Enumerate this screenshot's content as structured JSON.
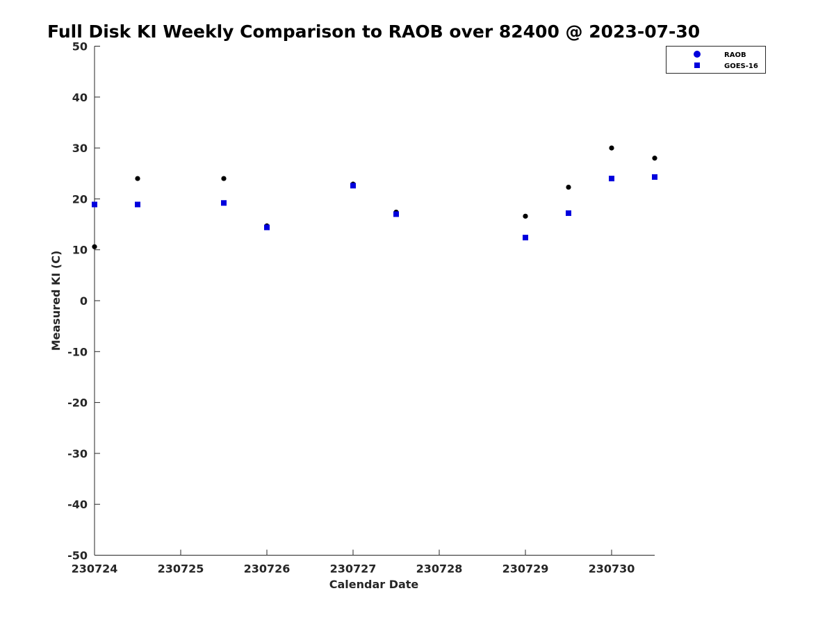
{
  "chart_data": {
    "type": "scatter",
    "title": "Full Disk KI Weekly Comparison to RAOB over 82400 @ 2023-07-30",
    "xlabel": "Calendar Date",
    "ylabel": "Measured KI (C)",
    "ylim": [
      -50,
      50
    ],
    "xlim": [
      "2023-07-24 00:00",
      "2023-07-30 12:00"
    ],
    "x_ticks": [
      "2023-07-24",
      "2023-07-25",
      "2023-07-26",
      "2023-07-27",
      "2023-07-28",
      "2023-07-29",
      "2023-07-30"
    ],
    "x_tick_labels": [
      "230724",
      "230725",
      "230726",
      "230727",
      "230728",
      "230729",
      "230730"
    ],
    "y_ticks": [
      -50,
      -40,
      -30,
      -20,
      -10,
      0,
      10,
      20,
      30,
      40,
      50
    ],
    "grid": false,
    "legend_position": "top-right",
    "series": [
      {
        "name": "RAOB",
        "marker": "circle",
        "color": "#000000",
        "legend_color": "#0000dd",
        "x": [
          "2023-07-24 00:00",
          "2023-07-24 12:00",
          "2023-07-25 12:00",
          "2023-07-26 00:00",
          "2023-07-27 00:00",
          "2023-07-27 12:00",
          "2023-07-29 00:00",
          "2023-07-29 12:00",
          "2023-07-30 00:00",
          "2023-07-30 12:00"
        ],
        "values": [
          10.6,
          24.0,
          24.0,
          14.7,
          22.9,
          17.4,
          16.6,
          22.3,
          30.0,
          28.0
        ]
      },
      {
        "name": "GOES-16",
        "marker": "square",
        "color": "#0000dd",
        "x": [
          "2023-07-24 00:00",
          "2023-07-24 12:00",
          "2023-07-25 12:00",
          "2023-07-26 00:00",
          "2023-07-27 00:00",
          "2023-07-27 12:00",
          "2023-07-29 00:00",
          "2023-07-29 12:00",
          "2023-07-30 00:00",
          "2023-07-30 12:00"
        ],
        "values": [
          18.9,
          18.9,
          19.2,
          14.4,
          22.6,
          17.0,
          12.4,
          17.2,
          24.0,
          24.3
        ]
      }
    ]
  }
}
